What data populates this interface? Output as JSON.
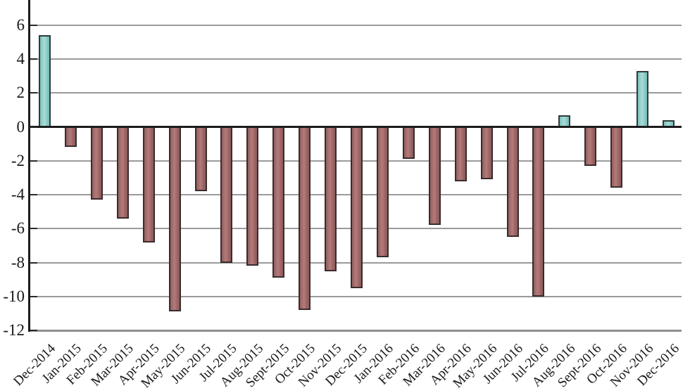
{
  "chart_data": {
    "type": "bar",
    "title": "",
    "xlabel": "",
    "ylabel": "",
    "categories": [
      "Dec-2014",
      "Jan-2015",
      "Feb-2015",
      "Mar-2015",
      "Apr-2015",
      "May-2015",
      "Jun-2015",
      "Jul-2015",
      "Aug-2015",
      "Sept-2015",
      "Oct-2015",
      "Nov-2015",
      "Dec-2015",
      "Jan-2016",
      "Feb-2016",
      "Mar-2016",
      "Apr-2016",
      "May-2016",
      "Jun-2016",
      "Jul-2016",
      "Aug-2016",
      "Sept-2016",
      "Oct-2016",
      "Nov-2016",
      "Dec-2016"
    ],
    "values": [
      5.4,
      -1.2,
      -4.3,
      -5.4,
      -6.8,
      -10.9,
      -3.8,
      -8.0,
      -8.2,
      -8.9,
      -10.8,
      -8.5,
      -9.5,
      -7.7,
      -1.9,
      -5.8,
      -3.2,
      -3.1,
      -6.5,
      -10.0,
      0.7,
      -2.3,
      -3.6,
      3.3,
      0.4
    ],
    "yticks": [
      6,
      4,
      2,
      0,
      -2,
      -4,
      -6,
      -8,
      -10,
      -12
    ],
    "ylim": [
      -12,
      7.5
    ],
    "grid": true,
    "legend": false,
    "bar_colors_by_sign": {
      "positive_fill": "#8fcec9",
      "positive_border": "#2e3c3b",
      "negative_fill": "#a66c6c",
      "negative_border": "#392c2e"
    },
    "gridline_color": "#9a9a9a",
    "axis_color": "#1c1c1c",
    "text_color": "#1a1a1a",
    "background_color": "#ffffff"
  }
}
